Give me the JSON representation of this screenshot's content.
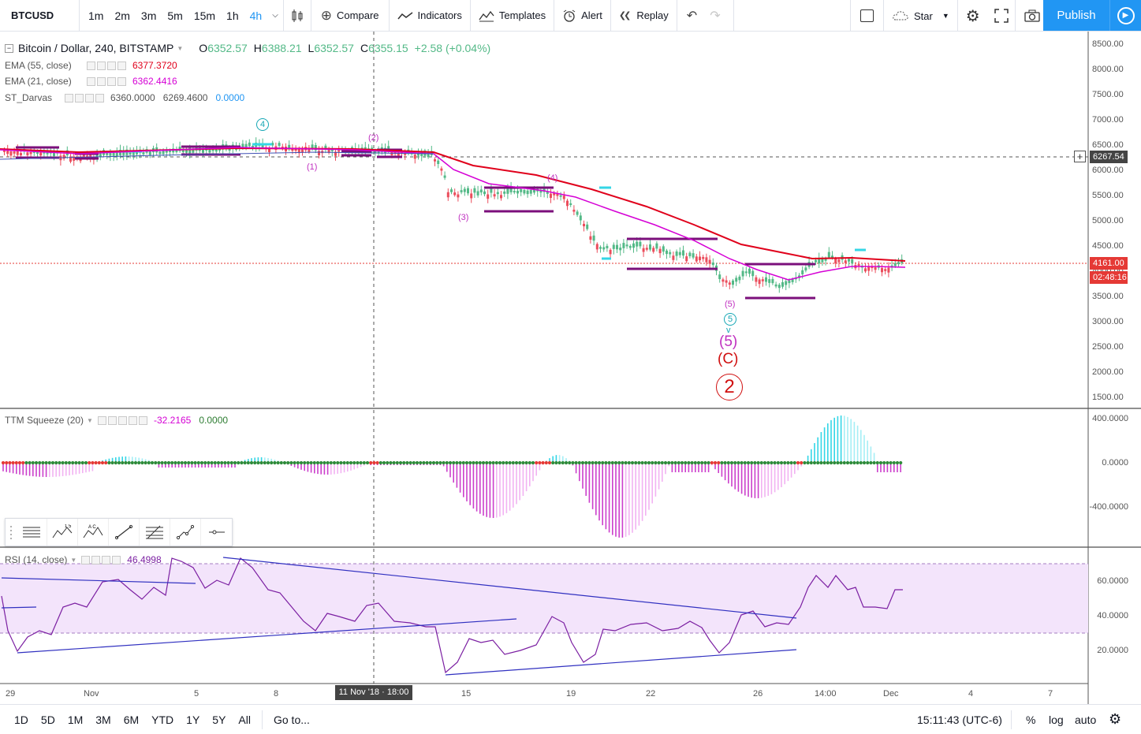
{
  "toolbar": {
    "symbol": "BTCUSD",
    "intervals": [
      "1m",
      "2m",
      "3m",
      "5m",
      "15m",
      "1h",
      "4h"
    ],
    "active_interval": "4h",
    "compare_label": "Compare",
    "indicators_label": "Indicators",
    "templates_label": "Templates",
    "alert_label": "Alert",
    "replay_label": "Replay",
    "star_label": "Star",
    "publish_label": "Publish"
  },
  "main_legend": {
    "title": "Bitcoin / Dollar, 240, BITSTAMP",
    "o_label": "O",
    "o_value": "6352.57",
    "h_label": "H",
    "h_value": "6388.21",
    "l_label": "L",
    "l_value": "6352.57",
    "c_label": "C",
    "c_value": "6355.15",
    "change": "+2.58 (+0.04%)"
  },
  "indicators": {
    "ema55": {
      "name": "EMA (55, close)",
      "value": "6377.3720",
      "color": "#e0001b"
    },
    "ema21": {
      "name": "EMA (21, close)",
      "value": "6362.4416",
      "color": "#d500d5"
    },
    "darvas": {
      "name": "ST_Darvas",
      "v1": "6360.0000",
      "v2": "6269.4600",
      "v3": "0.0000"
    },
    "ttm": {
      "name": "TTM Squeeze (20)",
      "v1": "-32.2165",
      "v2": "0.0000"
    },
    "rsi": {
      "name": "RSI (14, close)",
      "value": "46.4998"
    }
  },
  "price_axis": {
    "labels": [
      "8500.00",
      "8000.00",
      "7500.00",
      "7000.00",
      "6500.00",
      "6000.00",
      "5500.00",
      "5000.00",
      "4500.00",
      "4000.00",
      "3500.00",
      "3000.00",
      "2500.00",
      "2000.00",
      "1500.00"
    ],
    "crosshair_price": "6267.54",
    "last_price": "4161.00",
    "countdown": "02:48:16"
  },
  "ttm_axis": {
    "labels": [
      "400.0000",
      "0.0000",
      "-400.0000"
    ]
  },
  "rsi_axis": {
    "labels": [
      "60.0000",
      "40.0000",
      "20.0000"
    ]
  },
  "time_axis": {
    "labels": [
      "29",
      "Nov",
      "5",
      "8",
      "15",
      "19",
      "22",
      "26",
      "14:00",
      "Dec",
      "4",
      "7"
    ],
    "crosshair_time": "11 Nov '18 · 18:00"
  },
  "wave_labels": {
    "w4_circle": "4",
    "w2": "(2)",
    "w1": "(1)",
    "w3": "(3)",
    "w4": "(4)",
    "w5": "(5)",
    "w5_circle": "5",
    "w5_big": "(5)",
    "wC": "(C)",
    "w2_circle": "2"
  },
  "bottom": {
    "ranges": [
      "1D",
      "5D",
      "1M",
      "3M",
      "6M",
      "YTD",
      "1Y",
      "5Y",
      "All"
    ],
    "goto_label": "Go to...",
    "clock": "15:11:43 (UTC-6)",
    "percent_label": "%",
    "log_label": "log",
    "auto_label": "auto"
  },
  "colors": {
    "up": "#53b987",
    "down": "#eb4d5c",
    "accent": "#2196f3"
  }
}
